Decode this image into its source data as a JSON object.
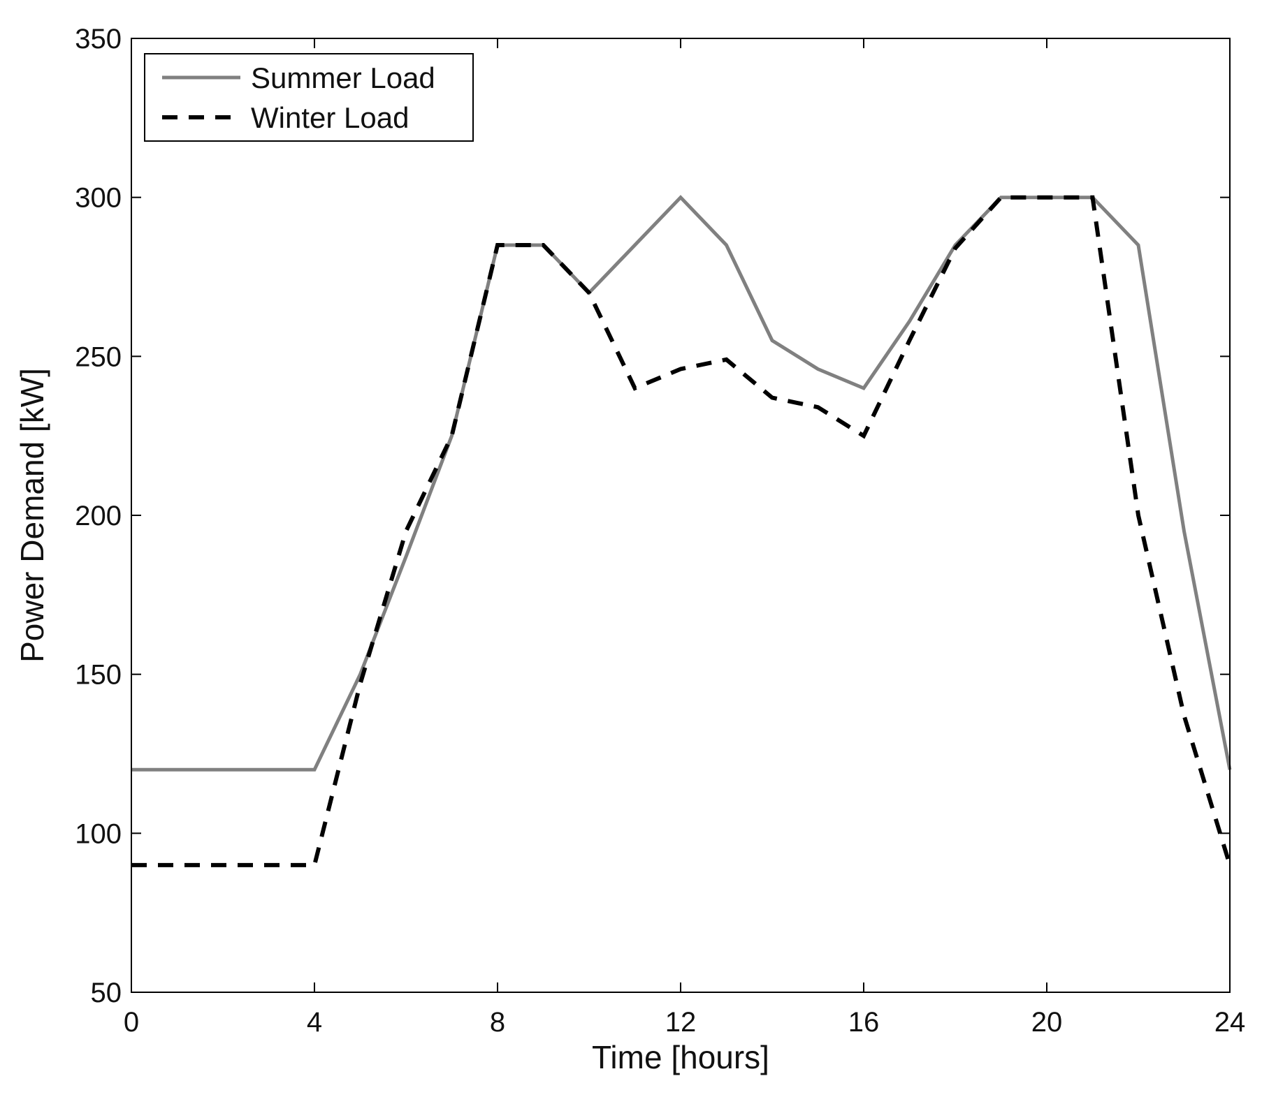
{
  "chart_data": {
    "type": "line",
    "title": "",
    "xlabel": "Time  [hours]",
    "ylabel": "Power Demand  [kW]",
    "xlim": [
      0,
      24
    ],
    "ylim": [
      50,
      350
    ],
    "xticks": [
      0,
      4,
      8,
      12,
      16,
      20,
      24
    ],
    "yticks": [
      50,
      100,
      150,
      200,
      250,
      300,
      350
    ],
    "grid": false,
    "legend_position": "top-left",
    "series": [
      {
        "name": "Summer Load",
        "color": "#808080",
        "style": "solid",
        "x": [
          0,
          1,
          2,
          3,
          4,
          5,
          6,
          7,
          8,
          9,
          10,
          11,
          12,
          13,
          14,
          15,
          16,
          17,
          18,
          19,
          20,
          21,
          22,
          23,
          24
        ],
        "y": [
          120,
          120,
          120,
          120,
          120,
          150,
          187,
          225,
          285,
          285,
          270,
          285,
          300,
          285,
          255,
          246,
          240,
          261,
          285,
          300,
          300,
          300,
          285,
          195,
          120
        ]
      },
      {
        "name": "Winter Load",
        "color": "#000000",
        "style": "dashed",
        "x": [
          0,
          1,
          2,
          3,
          4,
          5,
          6,
          7,
          8,
          9,
          10,
          11,
          12,
          13,
          14,
          15,
          16,
          17,
          18,
          19,
          20,
          21,
          22,
          23,
          24
        ],
        "y": [
          90,
          90,
          90,
          90,
          90,
          147,
          195,
          225,
          285,
          285,
          270,
          240,
          246,
          249,
          237,
          234,
          225,
          255,
          284,
          300,
          300,
          300,
          200,
          137,
          90
        ]
      }
    ]
  }
}
